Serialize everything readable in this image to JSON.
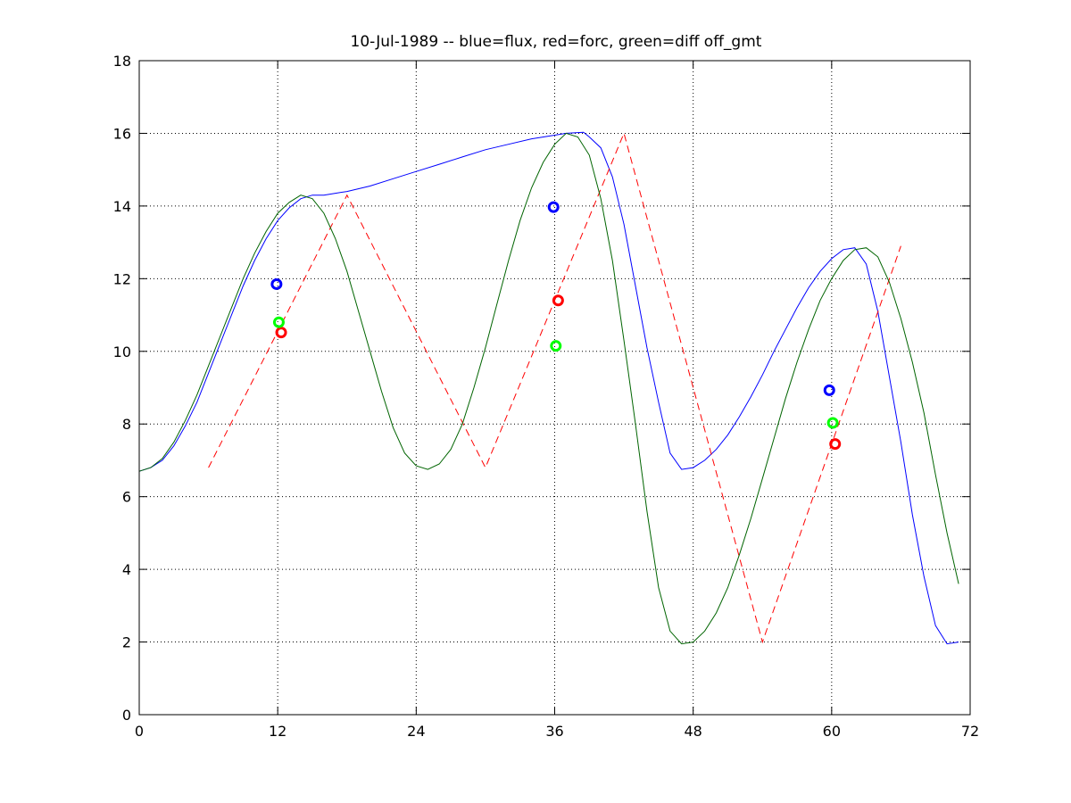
{
  "chart_data": {
    "type": "line",
    "title": "10-Jul-1989 -- blue=flux, red=forc, green=diff off_gmt",
    "xlabel": "",
    "ylabel": "",
    "xlim": [
      0,
      72
    ],
    "ylim": [
      0,
      18
    ],
    "xticks": [
      0,
      12,
      24,
      36,
      48,
      60,
      72
    ],
    "yticks": [
      0,
      2,
      4,
      6,
      8,
      10,
      12,
      14,
      16,
      18
    ],
    "grid": true,
    "legend": "none",
    "series": [
      {
        "color": "#0000ff",
        "style": "solid",
        "x": [
          0,
          1,
          2,
          3,
          4,
          5,
          6,
          7,
          8,
          9,
          10,
          11,
          12,
          13,
          14,
          15,
          16,
          17,
          18,
          20,
          22,
          24,
          26,
          28,
          30,
          32,
          34,
          36,
          37,
          38,
          38.5,
          39,
          40,
          41,
          42,
          43,
          44,
          45,
          46,
          47,
          48,
          49,
          50,
          51,
          52,
          53,
          54,
          55,
          56,
          57,
          58,
          59,
          60,
          61,
          62,
          63,
          64,
          65,
          66,
          67,
          68,
          69,
          70,
          71
        ],
        "y": [
          6.7,
          6.8,
          7.0,
          7.4,
          7.95,
          8.6,
          9.4,
          10.2,
          11.0,
          11.8,
          12.5,
          13.1,
          13.6,
          13.95,
          14.2,
          14.3,
          14.3,
          14.35,
          14.4,
          14.55,
          14.75,
          14.95,
          15.15,
          15.35,
          15.55,
          15.7,
          15.85,
          15.95,
          16.0,
          16.02,
          16.03,
          15.9,
          15.6,
          14.8,
          13.5,
          11.8,
          10.1,
          8.6,
          7.2,
          6.75,
          6.8,
          7.0,
          7.3,
          7.7,
          8.2,
          8.75,
          9.35,
          10.0,
          10.6,
          11.2,
          11.75,
          12.2,
          12.55,
          12.8,
          12.85,
          12.4,
          11.1,
          9.3,
          7.5,
          5.5,
          3.8,
          2.45,
          1.95,
          2.0
        ]
      },
      {
        "color": "#ff0000",
        "style": "dashed",
        "x": [
          6,
          18,
          30,
          42,
          54,
          66
        ],
        "y": [
          6.8,
          14.3,
          6.8,
          16.0,
          2.0,
          12.9
        ]
      },
      {
        "color": "#006400",
        "style": "solid",
        "x": [
          0,
          1,
          2,
          3,
          4,
          5,
          6,
          7,
          8,
          9,
          10,
          11,
          12,
          13,
          14,
          15,
          16,
          17,
          18,
          19,
          20,
          21,
          22,
          23,
          24,
          25,
          26,
          27,
          28,
          29,
          30,
          31,
          32,
          33,
          34,
          35,
          36,
          37,
          38,
          39,
          40,
          41,
          42,
          43,
          44,
          45,
          46,
          47,
          48,
          49,
          50,
          51,
          52,
          53,
          54,
          55,
          56,
          57,
          58,
          59,
          60,
          61,
          62,
          63,
          64,
          65,
          66,
          67,
          68,
          69,
          70,
          71
        ],
        "y": [
          6.7,
          6.8,
          7.05,
          7.5,
          8.1,
          8.8,
          9.6,
          10.4,
          11.2,
          12.0,
          12.7,
          13.3,
          13.8,
          14.1,
          14.3,
          14.2,
          13.8,
          13.1,
          12.2,
          11.1,
          10.0,
          8.9,
          7.9,
          7.2,
          6.85,
          6.75,
          6.9,
          7.3,
          8.0,
          9.0,
          10.1,
          11.3,
          12.5,
          13.6,
          14.5,
          15.2,
          15.7,
          16.0,
          15.9,
          15.4,
          14.2,
          12.5,
          10.3,
          8.0,
          5.6,
          3.5,
          2.3,
          1.95,
          2.0,
          2.3,
          2.8,
          3.5,
          4.4,
          5.4,
          6.5,
          7.6,
          8.7,
          9.7,
          10.6,
          11.4,
          12.0,
          12.5,
          12.8,
          12.85,
          12.6,
          11.9,
          10.9,
          9.7,
          8.3,
          6.6,
          5.0,
          3.6
        ]
      }
    ],
    "markers": [
      {
        "color": "#0000ff",
        "x": 11.9,
        "y": 11.85
      },
      {
        "color": "#0000ff",
        "x": 35.9,
        "y": 13.97
      },
      {
        "color": "#0000ff",
        "x": 59.8,
        "y": 8.93
      },
      {
        "color": "#ff0000",
        "x": 12.3,
        "y": 10.52
      },
      {
        "color": "#ff0000",
        "x": 36.3,
        "y": 11.4
      },
      {
        "color": "#ff0000",
        "x": 60.3,
        "y": 7.45
      },
      {
        "color": "#00ff00",
        "x": 12.1,
        "y": 10.8
      },
      {
        "color": "#00ff00",
        "x": 36.1,
        "y": 10.15
      },
      {
        "color": "#00ff00",
        "x": 60.1,
        "y": 8.03
      }
    ]
  }
}
